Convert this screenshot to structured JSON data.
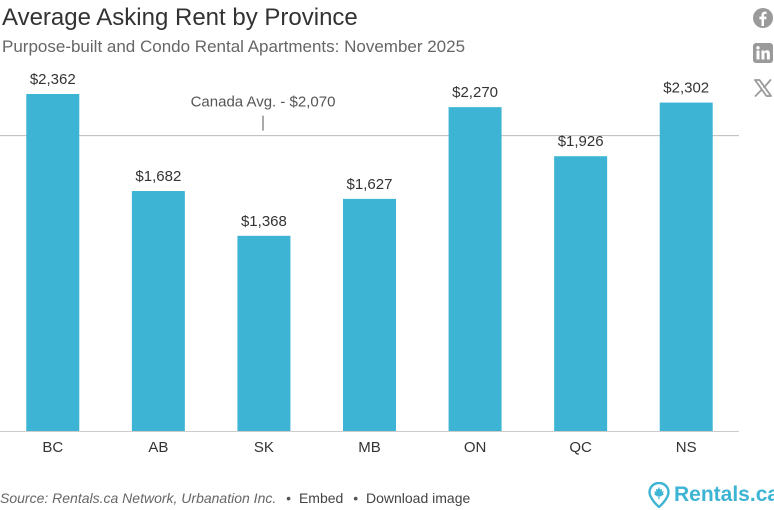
{
  "header": {
    "title": "Average Asking Rent by Province",
    "subtitle": "Purpose-built and Condo Rental Apartments: November 2025"
  },
  "social": {
    "icons": [
      "facebook-icon",
      "linkedin-icon",
      "x-icon"
    ],
    "icon_color": "#9a9a9a"
  },
  "footer": {
    "source": "Source: Rentals.ca Network, Urbanation Inc.",
    "embed_label": "Embed",
    "download_label": "Download image",
    "brand": "Rentals.ca"
  },
  "colors": {
    "bar": "#3db4d4",
    "reference_line": "#bbbbbb",
    "brand": "#3db4d4"
  },
  "chart_data": {
    "type": "bar",
    "categories": [
      "BC",
      "AB",
      "SK",
      "MB",
      "ON",
      "QC",
      "NS"
    ],
    "values": [
      2362,
      1682,
      1368,
      1627,
      2270,
      1926,
      2302
    ],
    "value_labels": [
      "$2,362",
      "$1,682",
      "$1,368",
      "$1,627",
      "$2,270",
      "$1,926",
      "$2,302"
    ],
    "reference_line": {
      "value": 2070,
      "label": "Canada Avg. - $2,070"
    },
    "title": "Average Asking Rent by Province",
    "subtitle": "Purpose-built and Condo Rental Apartments: November 2025",
    "xlabel": "",
    "ylabel": "",
    "ylim": [
      0,
      2362
    ],
    "grid": false,
    "legend": "none"
  }
}
